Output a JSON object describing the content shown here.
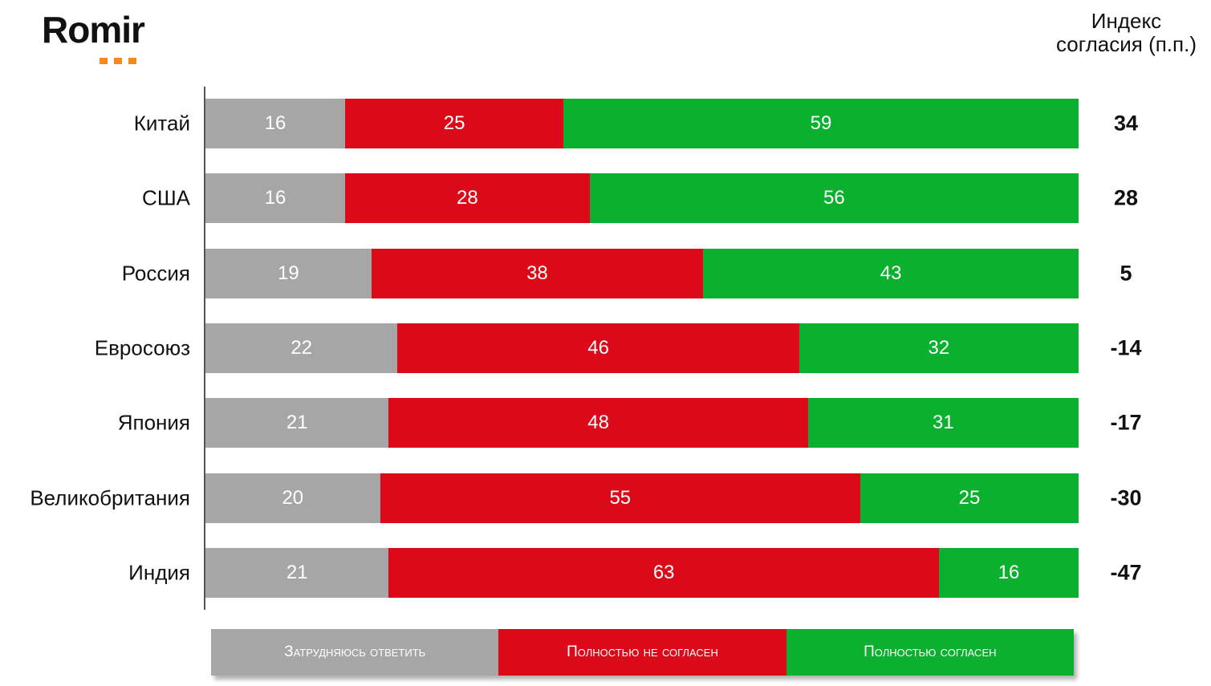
{
  "logo": {
    "text": "Romir"
  },
  "chart_data": {
    "type": "bar",
    "orientation": "horizontal-stacked-100",
    "categories": [
      "Китай",
      "США",
      "Россия",
      "Евросоюз",
      "Япония",
      "Великобритания",
      "Индия"
    ],
    "series": [
      {
        "name": "Затрудняюсь ответить",
        "color": "#a6a6a6",
        "values": [
          16,
          16,
          19,
          22,
          21,
          20,
          21
        ]
      },
      {
        "name": "Полностью не согласен",
        "color": "#dc0a19",
        "values": [
          25,
          28,
          38,
          46,
          48,
          55,
          63
        ]
      },
      {
        "name": "Полностью согласен",
        "color": "#0ab02e",
        "values": [
          59,
          56,
          43,
          32,
          31,
          25,
          16
        ]
      }
    ],
    "index_title": "Индекс согласия (п.п.)",
    "index_title_lines": [
      "Индекс",
      "согласия (п.п.)"
    ],
    "index_values": [
      "34",
      "28",
      "5",
      "-14",
      "-17",
      "-30",
      "-47"
    ],
    "xlim": [
      0,
      100
    ],
    "legend_placement": "bottom"
  }
}
